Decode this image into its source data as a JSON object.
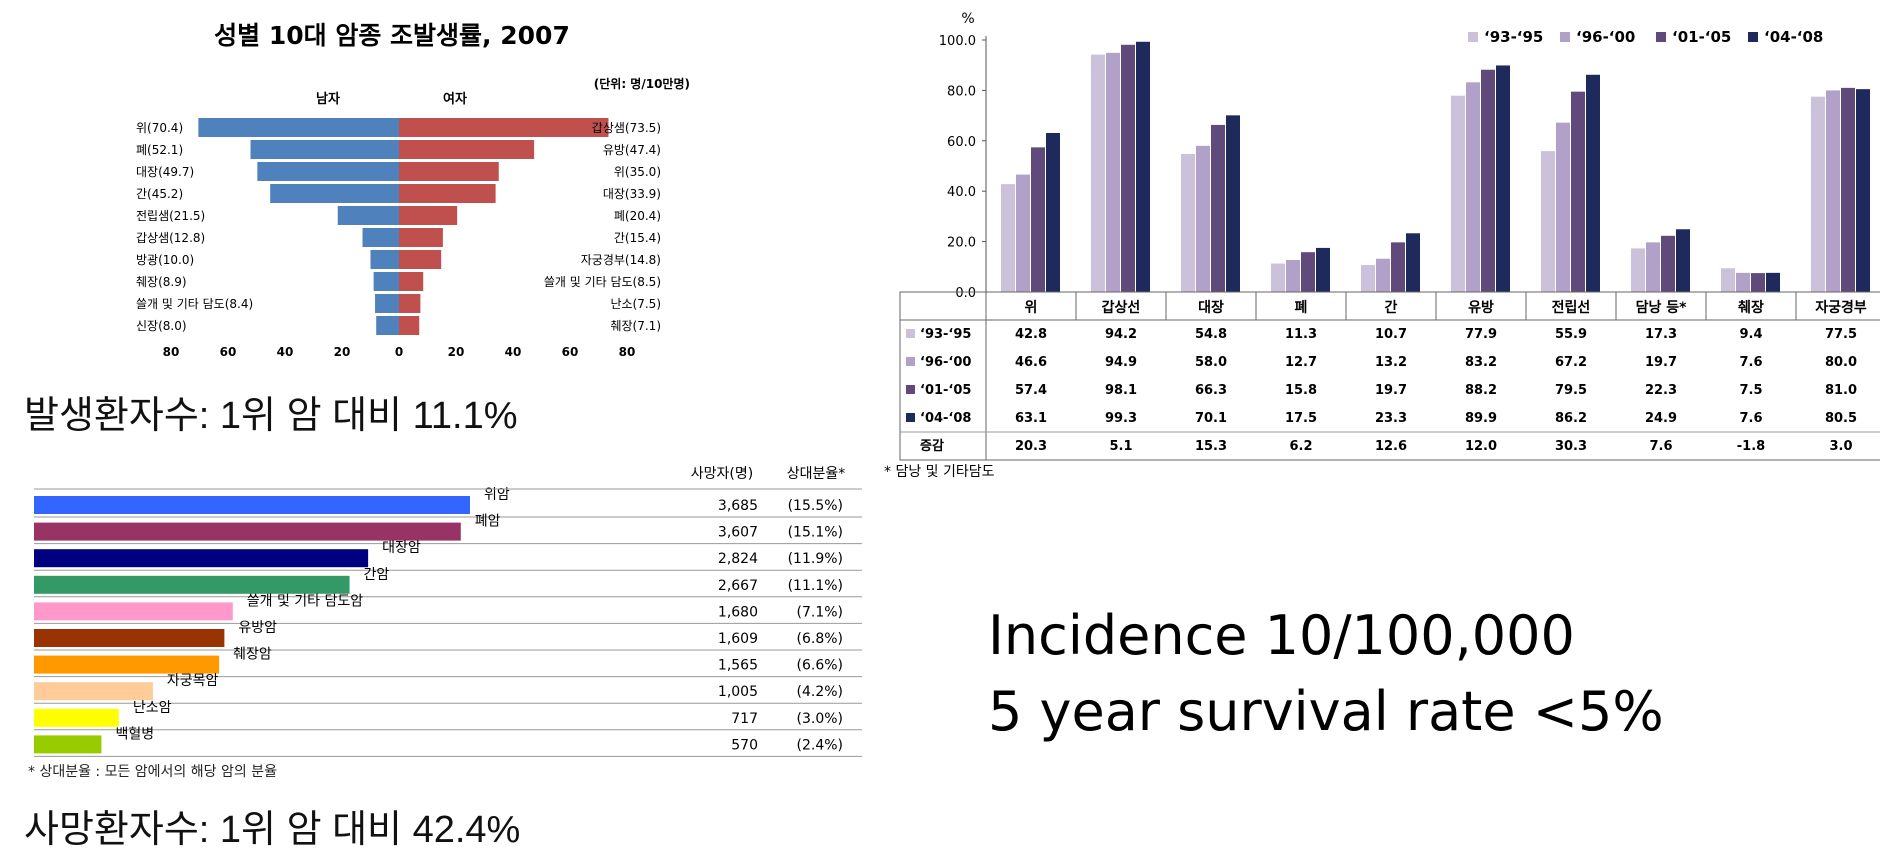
{
  "chart_data": [
    {
      "type": "bar",
      "orientation": "horizontal",
      "title": "성별 10대 암종 조발생률, 2007",
      "unit_note": "(단위: 명/10만명)",
      "left_header": "남자",
      "right_header": "여자",
      "x_ticks": [
        "80",
        "60",
        "40",
        "20",
        "0",
        "20",
        "40",
        "60",
        "80"
      ],
      "xlim": [
        -80,
        80
      ],
      "series": [
        {
          "name": "남자",
          "color": "#4f81bd",
          "labels": [
            "위(70.4)",
            "폐(52.1)",
            "대장(49.7)",
            "간(45.2)",
            "전립샘(21.5)",
            "갑상샘(12.8)",
            "방광(10.0)",
            "췌장(8.9)",
            "쓸개 및 기타 담도(8.4)",
            "신장(8.0)"
          ],
          "values": [
            70.4,
            52.1,
            49.7,
            45.2,
            21.5,
            12.8,
            10.0,
            8.9,
            8.4,
            8.0
          ]
        },
        {
          "name": "여자",
          "color": "#c0504d",
          "labels": [
            "갑상샘(73.5)",
            "유방(47.4)",
            "위(35.0)",
            "대장(33.9)",
            "폐(20.4)",
            "간(15.4)",
            "자궁경부(14.8)",
            "쓸개 및 기타 담도(8.5)",
            "난소(7.5)",
            "췌장(7.1)"
          ],
          "values": [
            73.5,
            47.4,
            35.0,
            33.9,
            20.4,
            15.4,
            14.8,
            8.5,
            7.5,
            7.1
          ]
        }
      ]
    },
    {
      "type": "bar",
      "ylabel": "%",
      "ylim": [
        0,
        100
      ],
      "y_ticks": [
        "0.0",
        "20.0",
        "40.0",
        "60.0",
        "80.0",
        "100.0"
      ],
      "categories": [
        "위",
        "갑상선",
        "대장",
        "폐",
        "간",
        "유방",
        "전립선",
        "담낭 등*",
        "췌장",
        "자궁경부"
      ],
      "legend_position": "top-right",
      "series": [
        {
          "name": "‘93-‘95",
          "color": "#ccc1da",
          "values": [
            42.8,
            94.2,
            54.8,
            11.3,
            10.7,
            77.9,
            55.9,
            17.3,
            9.4,
            77.5
          ]
        },
        {
          "name": "‘96-‘00",
          "color": "#b1a0c7",
          "values": [
            46.6,
            94.9,
            58.0,
            12.7,
            13.2,
            83.2,
            67.2,
            19.7,
            7.6,
            80.0
          ]
        },
        {
          "name": "‘01-‘05",
          "color": "#604a7b",
          "values": [
            57.4,
            98.1,
            66.3,
            15.8,
            19.7,
            88.2,
            79.5,
            22.3,
            7.5,
            81.0
          ]
        },
        {
          "name": "‘04-‘08",
          "color": "#1f2a5c",
          "values": [
            63.1,
            99.3,
            70.1,
            17.5,
            23.3,
            89.9,
            86.2,
            24.9,
            7.6,
            80.5
          ]
        }
      ],
      "table": {
        "row_labels": [
          "‘93-‘95",
          "‘96-‘00",
          "‘01-‘05",
          "‘04-‘08",
          "증감"
        ],
        "rows": [
          [
            "42.8",
            "94.2",
            "54.8",
            "11.3",
            "10.7",
            "77.9",
            "55.9",
            "17.3",
            "9.4",
            "77.5"
          ],
          [
            "46.6",
            "94.9",
            "58.0",
            "12.7",
            "13.2",
            "83.2",
            "67.2",
            "19.7",
            "7.6",
            "80.0"
          ],
          [
            "57.4",
            "98.1",
            "66.3",
            "15.8",
            "19.7",
            "88.2",
            "79.5",
            "22.3",
            "7.5",
            "81.0"
          ],
          [
            "63.1",
            "99.3",
            "70.1",
            "17.5",
            "23.3",
            "89.9",
            "86.2",
            "24.9",
            "7.6",
            "80.5"
          ],
          [
            "20.3",
            "5.1",
            "15.3",
            "6.2",
            "12.6",
            "12.0",
            "30.3",
            "7.6",
            "-1.8",
            "3.0"
          ]
        ]
      },
      "footnote": "* 담낭 및 기타담도"
    },
    {
      "type": "bar",
      "orientation": "horizontal",
      "header_count": "사망자(명)",
      "header_share": "상대분율*",
      "categories": [
        "위암",
        "폐암",
        "대장암",
        "간암",
        "쓸개 및 기타 담도암",
        "유방암",
        "췌장암",
        "자궁목암",
        "난소암",
        "백혈병"
      ],
      "values": [
        3685,
        3607,
        2824,
        2667,
        1680,
        1609,
        1565,
        1005,
        717,
        570
      ],
      "count_labels": [
        "3,685",
        "3,607",
        "2,824",
        "2,667",
        "1,680",
        "1,609",
        "1,565",
        "1,005",
        "717",
        "570"
      ],
      "share_labels": [
        "(15.5%)",
        "(15.1%)",
        "(11.9%)",
        "(11.1%)",
        "(7.1%)",
        "(6.8%)",
        "(6.6%)",
        "(4.2%)",
        "(3.0%)",
        "(2.4%)"
      ],
      "colors": [
        "#3366ff",
        "#993366",
        "#000080",
        "#339966",
        "#ff99cc",
        "#993300",
        "#ff9900",
        "#ffcc99",
        "#ffff00",
        "#99cc00"
      ],
      "footnote": "* 상대분율 : 모든 암에서의 해당 암의 분율"
    }
  ],
  "captions": {
    "incidence_rank": "발생환자수: 1위 암 대비 11.1%",
    "death_rank": "사망환자수: 1위 암 대비 42.4%",
    "incidence": "Incidence 10/100,000",
    "survival": "5 year survival rate <5%"
  }
}
